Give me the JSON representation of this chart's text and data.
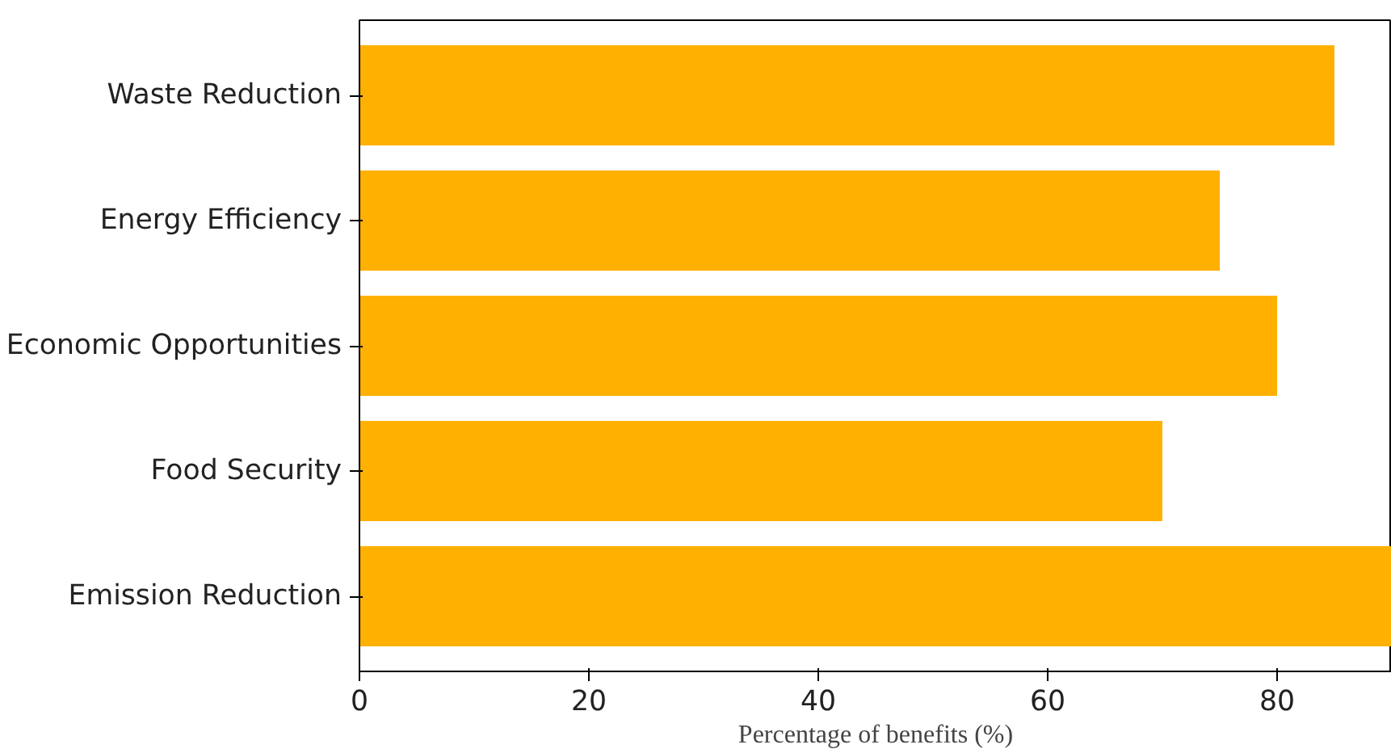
{
  "chart_data": {
    "type": "bar",
    "orientation": "horizontal",
    "xlabel": "Percentage of benefits (%)",
    "categories": [
      "Waste Reduction",
      "Energy Efficiency",
      "Economic Opportunities",
      "Food Security",
      "Emission Reduction"
    ],
    "values": [
      85,
      75,
      80,
      70,
      90
    ],
    "color": "#ffb000",
    "xlim": [
      0,
      90
    ],
    "xticks": [
      0,
      20,
      40,
      60,
      80
    ],
    "grid": false
  }
}
